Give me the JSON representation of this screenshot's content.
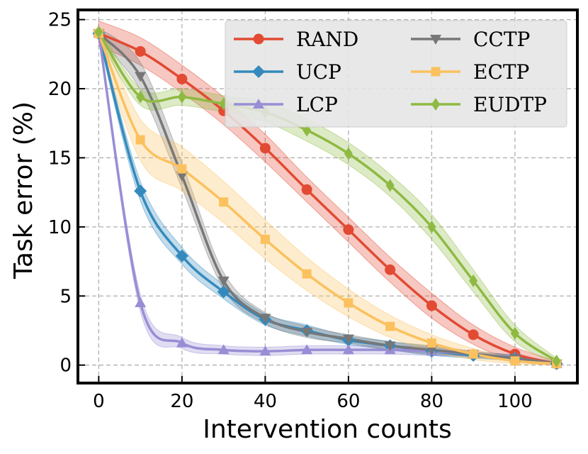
{
  "chart_data": {
    "type": "line",
    "title": "",
    "xlabel": "Intervention counts",
    "ylabel": "Task error (%)",
    "xlim": [
      -5,
      115
    ],
    "ylim": [
      -1.3,
      25.7
    ],
    "xticks": [
      0,
      20,
      40,
      60,
      80,
      100
    ],
    "yticks": [
      0,
      5,
      10,
      15,
      20,
      25
    ],
    "grid": true,
    "legend_location": "top-right",
    "x": [
      0,
      10,
      20,
      30,
      40,
      50,
      60,
      70,
      80,
      90,
      100,
      110
    ],
    "series": [
      {
        "name": "RAND",
        "color": "#e24a33",
        "marker": "circle",
        "values": [
          24.0,
          22.7,
          20.7,
          18.4,
          15.7,
          12.7,
          9.8,
          6.9,
          4.3,
          2.2,
          0.8,
          0.1
        ],
        "band": [
          0.9,
          1.0,
          1.0,
          1.0,
          1.0,
          0.9,
          0.9,
          0.9,
          0.9,
          0.7,
          0.5,
          0.2
        ]
      },
      {
        "name": "UCP",
        "color": "#348abd",
        "marker": "diamond",
        "values": [
          24.0,
          12.6,
          7.9,
          5.3,
          3.3,
          2.5,
          1.8,
          1.4,
          1.0,
          0.7,
          0.5,
          0.1
        ],
        "band": [
          0.3,
          0.7,
          0.6,
          0.5,
          0.4,
          0.4,
          0.3,
          0.3,
          0.3,
          0.2,
          0.2,
          0.1
        ]
      },
      {
        "name": "LCP",
        "color": "#988ed5",
        "marker": "triangle-up",
        "values": [
          24.0,
          4.5,
          1.6,
          1.1,
          1.0,
          1.1,
          1.1,
          1.1,
          1.0,
          0.8,
          0.5,
          0.1
        ],
        "band": [
          0.3,
          0.6,
          0.4,
          0.3,
          0.3,
          0.3,
          0.3,
          0.3,
          0.3,
          0.2,
          0.2,
          0.1
        ]
      },
      {
        "name": "CCTP",
        "color": "#777777",
        "marker": "triangle-down",
        "values": [
          24.0,
          20.9,
          13.7,
          6.1,
          3.4,
          2.4,
          1.9,
          1.4,
          1.1,
          0.8,
          0.5,
          0.1
        ],
        "band": [
          0.4,
          1.0,
          0.9,
          0.6,
          0.4,
          0.4,
          0.3,
          0.3,
          0.3,
          0.2,
          0.2,
          0.1
        ]
      },
      {
        "name": "ECTP",
        "color": "#fbc15e",
        "marker": "square",
        "values": [
          24.0,
          16.3,
          14.2,
          11.8,
          9.1,
          6.6,
          4.5,
          2.8,
          1.6,
          0.8,
          0.3,
          0.1
        ],
        "band": [
          0.5,
          1.5,
          1.6,
          1.5,
          1.4,
          1.2,
          1.0,
          0.8,
          0.6,
          0.4,
          0.2,
          0.1
        ]
      },
      {
        "name": "EUDTP",
        "color": "#8eba42",
        "marker": "thin-diamond",
        "values": [
          24.1,
          19.4,
          19.4,
          18.9,
          18.3,
          17.0,
          15.3,
          13.0,
          10.0,
          6.1,
          2.3,
          0.3
        ],
        "band": [
          0.4,
          0.6,
          0.6,
          0.6,
          0.7,
          0.8,
          0.8,
          0.8,
          0.9,
          0.8,
          0.6,
          0.2
        ]
      }
    ]
  }
}
